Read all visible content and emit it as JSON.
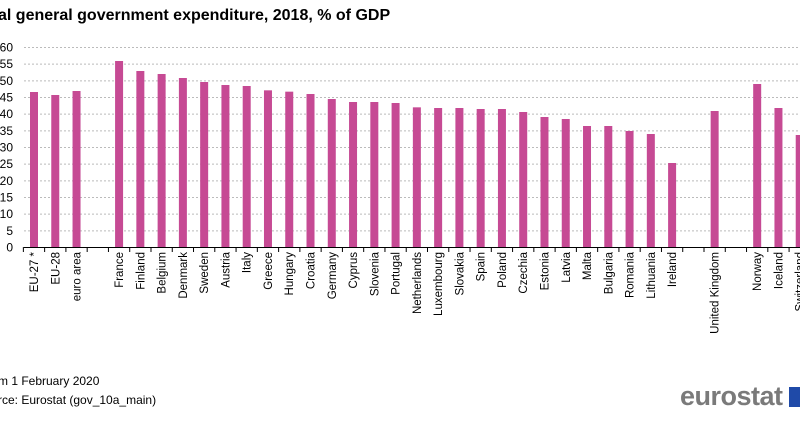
{
  "chart_data": {
    "type": "bar",
    "title": "al general government expenditure, 2018, % of GDP",
    "categories": [
      "EU-27 *",
      "EU-28",
      "euro area",
      "",
      "France",
      "Finland",
      "Belgium",
      "Denmark",
      "Sweden",
      "Austria",
      "Italy",
      "Greece",
      "Hungary",
      "Croatia",
      "Germany",
      "Cyprus",
      "Slovenia",
      "Portugal",
      "Netherlands",
      "Luxembourg",
      "Slovakia",
      "Spain",
      "Poland",
      "Czechia",
      "Estonia",
      "Latvia",
      "Malta",
      "Bulgaria",
      "Romania",
      "Lithuania",
      "Ireland",
      "",
      "United Kingdom",
      "",
      "Norway",
      "Iceland",
      "Switzerland"
    ],
    "values": [
      46.5,
      45.6,
      46.8,
      null,
      55.8,
      52.8,
      51.9,
      50.7,
      49.5,
      48.6,
      48.3,
      47.0,
      46.6,
      45.9,
      44.4,
      43.5,
      43.5,
      43.2,
      41.9,
      41.7,
      41.7,
      41.4,
      41.4,
      40.5,
      39.0,
      38.4,
      36.3,
      36.3,
      34.8,
      33.9,
      25.2,
      null,
      40.8,
      null,
      48.9,
      41.7,
      33.6
    ],
    "ylim": [
      0,
      60
    ],
    "yticks": [
      0,
      5,
      10,
      15,
      20,
      25,
      30,
      35,
      40,
      45,
      50,
      55,
      60
    ],
    "grid": true,
    "bar_color": "#c64a94",
    "xlabel": "",
    "ylabel": ""
  },
  "notes": {
    "date": "m 1 February 2020",
    "source": "rce: Eurostat (gov_10a_main)"
  },
  "logo": "eurostat"
}
